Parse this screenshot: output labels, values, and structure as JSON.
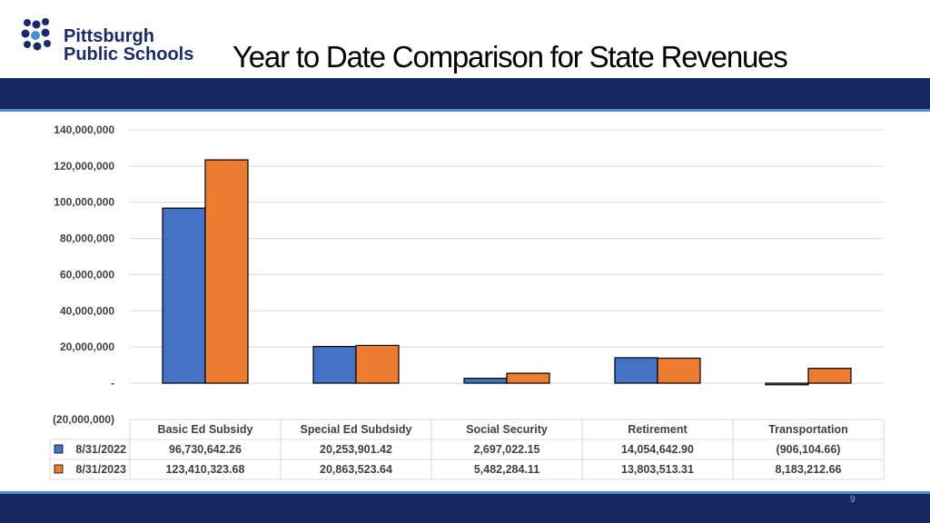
{
  "header": {
    "logo_line1": "Pittsburgh",
    "logo_line2": "Public Schools",
    "title": "Year to Date Comparison for  State Revenues"
  },
  "footer": {
    "page_number": "9"
  },
  "chart_data": {
    "type": "bar",
    "title": "Year to Date Comparison for  State Revenues",
    "categories": [
      "Basic Ed Subsidy",
      "Special Ed Subdsidy",
      "Social Security",
      "Retirement",
      "Transportation"
    ],
    "series": [
      {
        "name": "8/31/2022",
        "color": "#4472c4",
        "values": [
          96730642.26,
          20253901.42,
          2697022.15,
          14054642.9,
          -906104.66
        ],
        "labels": [
          "96,730,642.26",
          "20,253,901.42",
          "2,697,022.15",
          "14,054,642.90",
          "(906,104.66)"
        ]
      },
      {
        "name": "8/31/2023",
        "color": "#ed7d31",
        "values": [
          123410323.68,
          20863523.64,
          5482284.11,
          13803513.31,
          8183212.66
        ],
        "labels": [
          "123,410,323.68",
          "20,863,523.64",
          "5,482,284.11",
          "13,803,513.31",
          "8,183,212.66"
        ]
      }
    ],
    "ylim": [
      -20000000,
      140000000
    ],
    "y_ticks": [
      {
        "value": 140000000,
        "label": "140,000,000"
      },
      {
        "value": 120000000,
        "label": "120,000,000"
      },
      {
        "value": 100000000,
        "label": "100,000,000"
      },
      {
        "value": 80000000,
        "label": "80,000,000"
      },
      {
        "value": 60000000,
        "label": "60,000,000"
      },
      {
        "value": 40000000,
        "label": "40,000,000"
      },
      {
        "value": 20000000,
        "label": "20,000,000"
      },
      {
        "value": 0,
        "label": "-"
      },
      {
        "value": -20000000,
        "label": "(20,000,000)"
      }
    ],
    "grid": true,
    "legend": "data-table",
    "xlabel": "",
    "ylabel": ""
  }
}
